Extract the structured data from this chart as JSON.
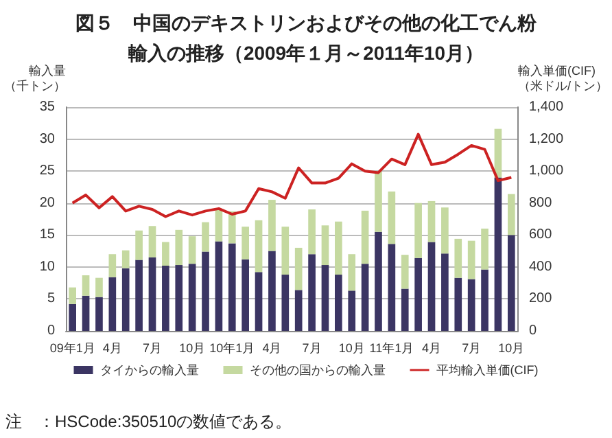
{
  "chart_data": {
    "type": "bar",
    "title": "図５　中国のデキストリンおよびその他の化工でん粉",
    "subtitle": "輸入の推移（2009年１月～2011年10月）",
    "ylabel": "輸入量（千トン）",
    "y2label": "輸入単価(CIF)（米ドル/トン）",
    "annotations": [
      "注　：HSCode:350510の数値である。"
    ],
    "categories": [
      "09年1月",
      null,
      null,
      "4月",
      null,
      null,
      "7月",
      null,
      null,
      "10月",
      null,
      null,
      "10年1月",
      null,
      null,
      "4月",
      null,
      null,
      "7月",
      null,
      null,
      "10月",
      null,
      null,
      "11年1月",
      null,
      null,
      "4月",
      null,
      null,
      "7月",
      null,
      null,
      "10月"
    ],
    "stacked": true,
    "series": [
      {
        "name": "タイからの輸入量",
        "color": "#3b3563",
        "values": [
          4.2,
          5.5,
          5.3,
          8.4,
          9.8,
          11.1,
          11.5,
          10.2,
          10.3,
          10.5,
          12.4,
          14.0,
          13.7,
          11.2,
          9.2,
          12.5,
          8.8,
          6.4,
          12.0,
          10.3,
          8.8,
          6.3,
          10.5,
          15.5,
          13.6,
          6.6,
          11.4,
          13.9,
          12.1,
          8.3,
          8.1,
          9.6,
          24.0,
          15.0
        ]
      },
      {
        "name": "その他の国からの輸入量",
        "color": "#c5d9a0",
        "values": [
          2.6,
          3.2,
          3.0,
          3.6,
          2.8,
          4.6,
          4.9,
          3.7,
          5.5,
          4.3,
          4.6,
          4.9,
          5.0,
          5.1,
          8.1,
          8.0,
          7.5,
          6.6,
          7.0,
          6.2,
          8.3,
          5.7,
          8.3,
          9.5,
          8.2,
          5.3,
          8.6,
          6.4,
          7.2,
          6.1,
          6.0,
          6.4,
          7.6,
          6.4
        ]
      },
      {
        "name": "平均輸入単価(CIF)",
        "type": "line",
        "axis": "y2",
        "color": "#cc2222",
        "values": [
          800,
          850,
          770,
          840,
          750,
          780,
          760,
          715,
          750,
          725,
          750,
          765,
          730,
          750,
          890,
          870,
          830,
          1020,
          925,
          925,
          955,
          1045,
          1000,
          990,
          1075,
          1040,
          1230,
          1040,
          1055,
          1105,
          1160,
          1135,
          940,
          960
        ]
      }
    ],
    "ylim": [
      0,
      35
    ],
    "yticks": [
      0,
      5,
      10,
      15,
      20,
      25,
      30,
      35
    ],
    "y2lim": [
      0,
      1400
    ],
    "y2ticks": [
      0,
      200,
      400,
      600,
      800,
      {
        "value": 1000,
        "label": "1,000"
      },
      {
        "value": 1200,
        "label": "1,200"
      },
      {
        "value": 1400,
        "label": "1,400"
      }
    ],
    "grid": "y",
    "legend": "bottom"
  }
}
